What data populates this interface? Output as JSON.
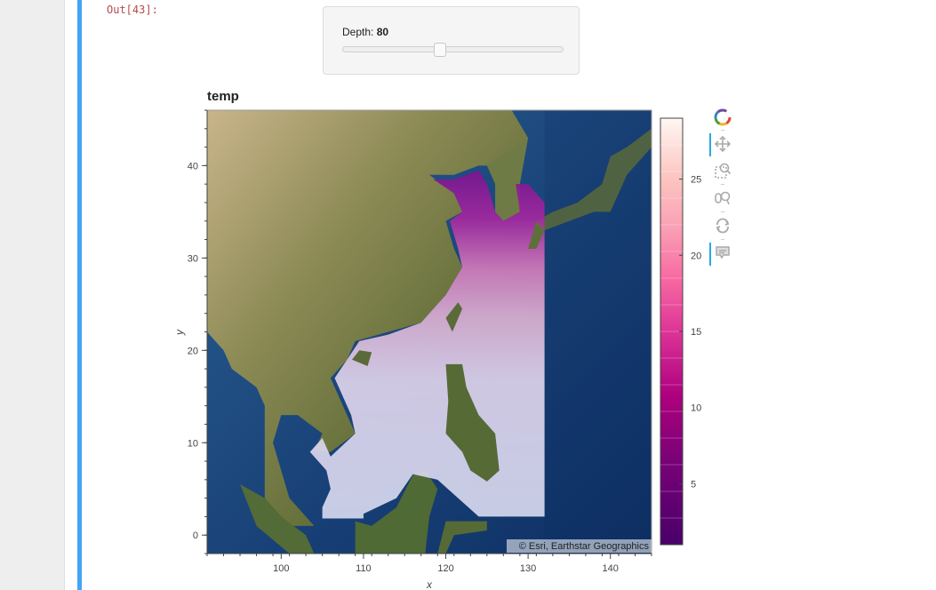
{
  "notebook": {
    "prompt": "Out[43]:"
  },
  "widget": {
    "label": "Depth:",
    "value": "80",
    "slider_fraction": 0.44
  },
  "plot": {
    "title": "temp",
    "attribution": "© Esri, Earthstar Geographics",
    "colors": {
      "land": "#6b6e3a",
      "ocean": "#1d4f86",
      "overlay_warm": "#dcd4f0",
      "overlay_cold": "#8c1f9a"
    }
  },
  "chart_data": {
    "type": "heatmap",
    "title": "temp",
    "xlabel": "x",
    "ylabel": "y",
    "xlim": [
      91,
      145
    ],
    "ylim": [
      -2,
      46
    ],
    "x_ticks": [
      100,
      110,
      120,
      130,
      140
    ],
    "y_ticks": [
      0,
      10,
      20,
      30,
      40
    ],
    "overlay_extent": {
      "x": [
        105,
        132
      ],
      "y": [
        2,
        38
      ]
    },
    "colorbar": {
      "ticks": [
        5,
        10,
        15,
        20,
        25
      ],
      "range": [
        1,
        29
      ],
      "colormap": "RdPu"
    }
  },
  "toolbar": {
    "tools": [
      {
        "name": "bokeh-logo-icon",
        "active": false
      },
      {
        "name": "pan-icon",
        "active": true
      },
      {
        "name": "box-zoom-icon",
        "active": false
      },
      {
        "name": "wheel-zoom-icon",
        "active": false
      },
      {
        "name": "reset-icon",
        "active": false
      },
      {
        "name": "hover-icon",
        "active": true
      }
    ]
  }
}
